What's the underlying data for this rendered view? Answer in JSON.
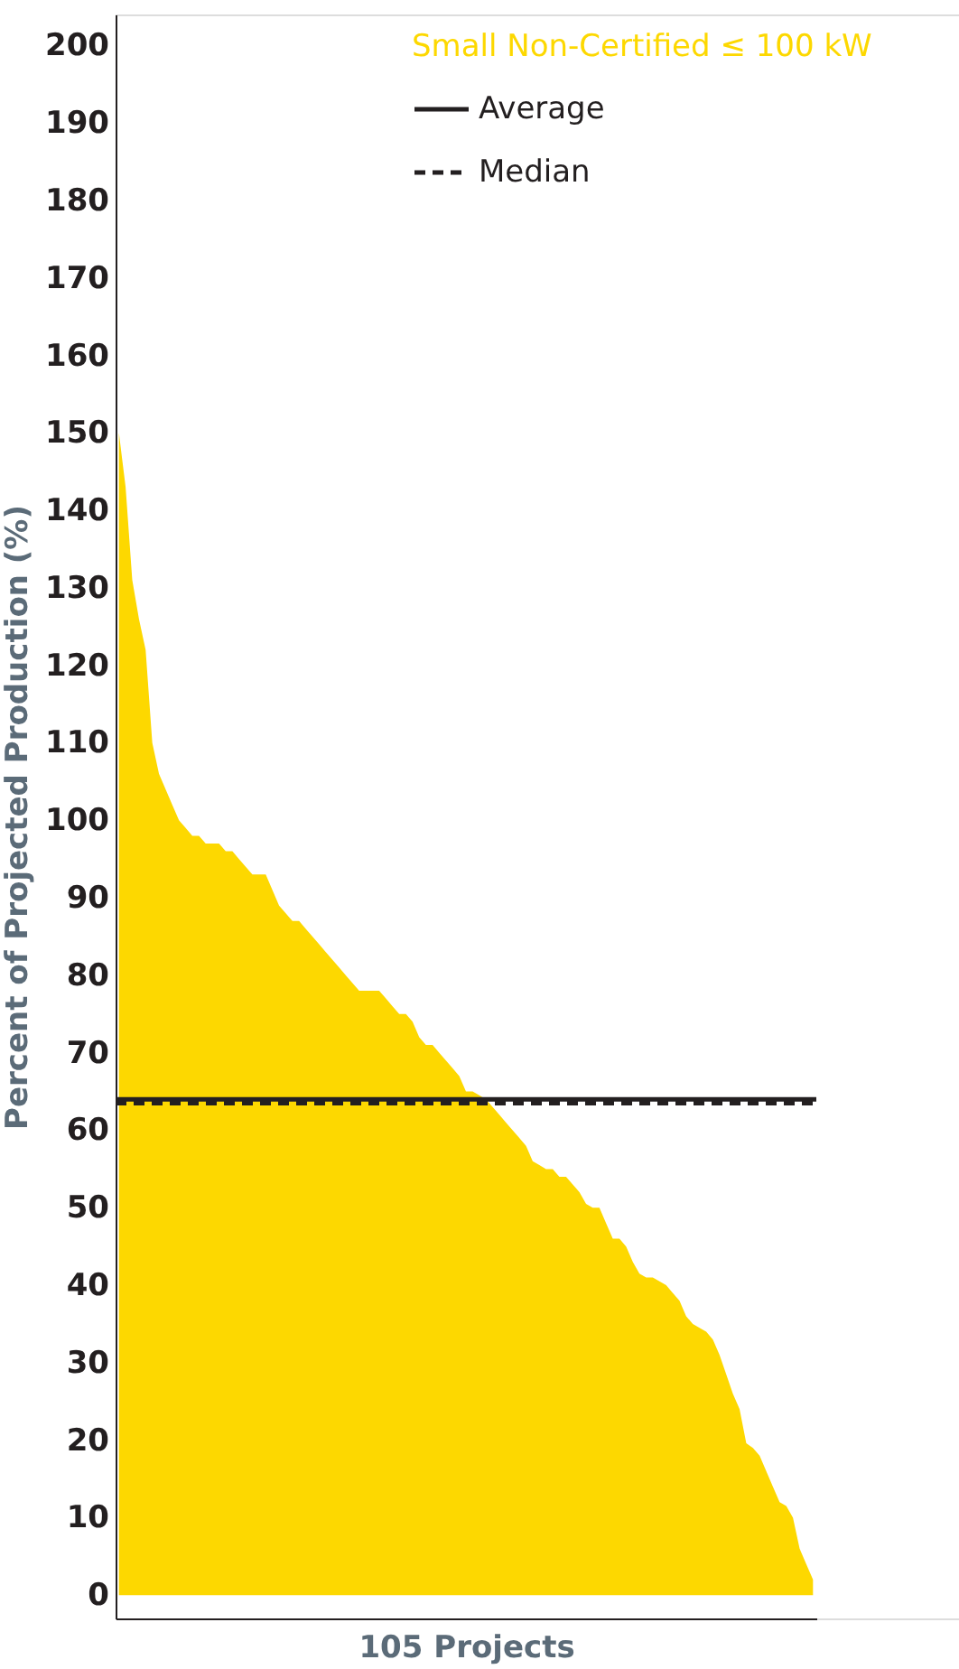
{
  "chart_data": {
    "type": "area",
    "xlabel": "105 Projects",
    "ylabel": "Percent of Projected Production (%)",
    "categories": [
      null,
      null,
      null,
      null,
      null,
      null,
      null,
      null,
      null,
      null,
      null,
      null,
      null,
      null,
      null,
      null,
      null,
      null,
      null,
      null,
      null,
      null,
      null,
      null,
      null,
      null,
      null,
      null,
      null,
      null,
      null,
      null,
      null,
      null,
      null,
      null,
      null,
      null,
      null,
      null,
      null,
      null,
      null,
      null,
      null,
      null,
      null,
      null,
      null,
      null,
      null,
      null,
      null,
      null,
      null,
      null,
      null,
      null,
      null,
      null,
      null,
      null,
      null,
      null,
      null,
      null,
      null,
      null,
      null,
      null,
      null,
      null,
      null,
      null,
      null,
      null,
      null,
      null,
      null,
      null,
      null,
      null,
      null,
      null,
      null,
      null,
      null,
      null,
      null,
      null,
      null,
      null,
      null,
      null,
      null,
      null,
      null,
      null,
      null,
      null,
      null,
      null,
      null,
      null,
      null
    ],
    "series": [
      {
        "name": "Small Non-Certified ≤ 100 kW",
        "color": "#fdd800",
        "values": [
          150,
          143,
          131,
          126,
          122,
          110,
          106,
          104,
          102,
          100,
          99,
          98,
          98,
          97,
          97,
          97,
          96,
          96,
          95,
          94,
          93,
          93,
          93,
          91,
          89,
          88,
          87,
          87,
          86,
          85,
          84,
          83,
          82,
          81,
          80,
          79,
          78,
          78,
          78,
          78,
          77,
          76,
          75,
          75,
          74,
          72,
          71,
          71,
          70,
          69,
          68,
          67,
          65,
          65,
          64.5,
          64,
          63,
          62,
          61,
          60,
          59,
          58,
          56,
          55.5,
          55,
          55,
          54,
          54,
          53,
          52,
          50.5,
          50,
          50,
          48,
          46,
          46,
          45,
          43,
          41.5,
          41,
          41,
          40.5,
          40,
          39,
          38,
          36,
          35,
          34.5,
          34,
          33,
          31,
          28.5,
          26,
          24,
          19.6,
          19,
          18,
          16,
          14,
          12,
          11.5,
          10,
          6,
          4,
          2
        ]
      }
    ],
    "ylim": [
      -3,
      204
    ],
    "yticks": [
      0,
      10,
      20,
      30,
      40,
      50,
      60,
      70,
      80,
      90,
      100,
      110,
      120,
      130,
      140,
      150,
      160,
      170,
      180,
      190,
      200
    ],
    "ref_lines": [
      {
        "axis": "y",
        "value": 64,
        "label": "Average",
        "color": "#231f20",
        "line_style": "solid"
      },
      {
        "axis": "y",
        "value": 63.5,
        "label": "Median",
        "color": "#231f20",
        "line_style": "dashed"
      }
    ],
    "tick_labels": "y",
    "grid": false,
    "legend": "top right"
  }
}
